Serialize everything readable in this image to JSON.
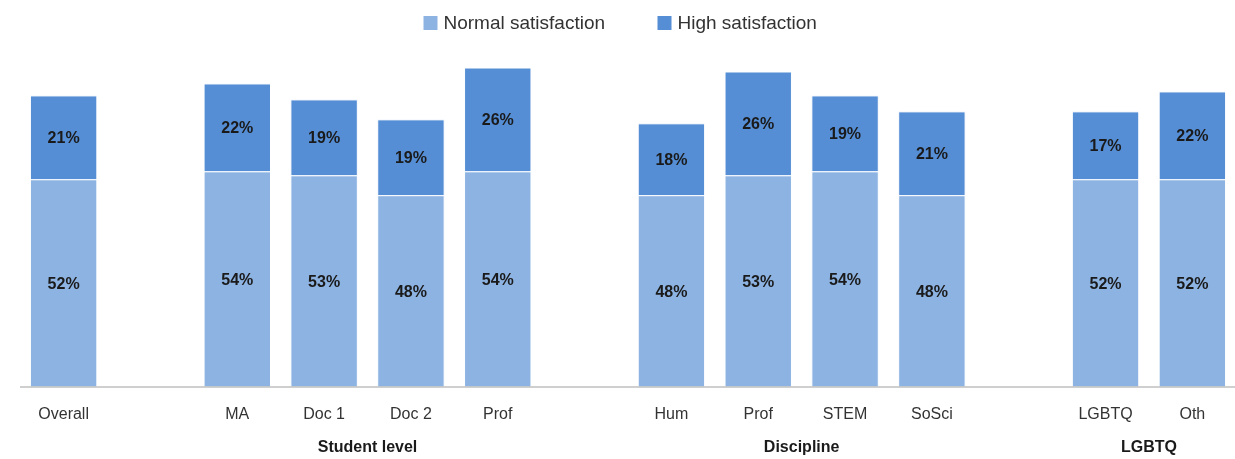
{
  "chart_data": {
    "type": "bar",
    "stacked": true,
    "legend": "top",
    "categories": [
      "Overall",
      null,
      "MA",
      "Doc 1",
      "Doc 2",
      "Prof",
      null,
      "Hum",
      "Prof",
      "STEM",
      "SoSci",
      null,
      "LGBTQ",
      "Oth"
    ],
    "series": [
      {
        "name": "Normal satisfaction",
        "color": "#8db3e2",
        "values": [
          52,
          null,
          54,
          53,
          48,
          54,
          null,
          48,
          53,
          54,
          48,
          null,
          52,
          52
        ],
        "value_labels": [
          "52%",
          null,
          "54%",
          "53%",
          "48%",
          "54%",
          null,
          "48%",
          "53%",
          "54%",
          "48%",
          null,
          "52%",
          "52%"
        ]
      },
      {
        "name": "High satisfaction",
        "color": "#558ed5",
        "values": [
          21,
          null,
          22,
          19,
          19,
          26,
          null,
          18,
          26,
          19,
          21,
          null,
          17,
          22
        ],
        "value_labels": [
          "21%",
          null,
          "22%",
          "19%",
          "19%",
          "26%",
          null,
          "18%",
          "26%",
          "19%",
          "21%",
          null,
          "17%",
          "22%"
        ]
      }
    ],
    "annotations": [
      "Student level",
      "Discipline",
      "LGBTQ"
    ]
  }
}
